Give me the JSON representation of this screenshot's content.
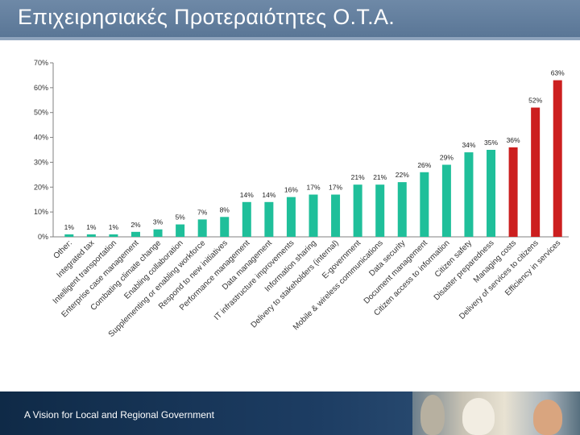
{
  "header": {
    "title": "Επιχειρησιακές Προτεραιότητες Ο.Τ.Α."
  },
  "footer": {
    "caption": "A Vision for Local and Regional Government",
    "photo_icon": "people-at-computer-photo"
  },
  "colors": {
    "header_bg": "#5f7b9b",
    "bar_teal": "#1fbf9a",
    "bar_red": "#cc1f1f",
    "footer_bg": "#142f50"
  },
  "chart_data": {
    "type": "bar",
    "title": "",
    "xlabel": "",
    "ylabel": "",
    "ylim": [
      0,
      70
    ],
    "yticks": [
      "0%",
      "10%",
      "20%",
      "30%",
      "40%",
      "50%",
      "60%",
      "70%"
    ],
    "grid": false,
    "categories": [
      "Other:",
      "Integrated tax",
      "Intelligent transportation",
      "Enterprise case management",
      "Combating climate change",
      "Enabling collaboration",
      "Supplementing or enabling workforce",
      "Respond to new initiatives",
      "Performance management",
      "Data management",
      "IT infrastructure improvements",
      "Information sharing",
      "Delivery to stakeholders (internal)",
      "E-government",
      "Mobile & wireless communications",
      "Data security",
      "Document management",
      "Citizen access to information",
      "Citizen safety",
      "Disaster preparedness",
      "Managing costs",
      "Delivery of services to citizens",
      "Efficiency in services"
    ],
    "values": [
      1,
      1,
      1,
      2,
      3,
      5,
      7,
      8,
      14,
      14,
      16,
      17,
      17,
      21,
      21,
      22,
      26,
      29,
      34,
      35,
      36,
      52,
      63
    ],
    "value_labels": [
      "1%",
      "1%",
      "1%",
      "2%",
      "3%",
      "5%",
      "7%",
      "8%",
      "14%",
      "14%",
      "16%",
      "17%",
      "17%",
      "21%",
      "21%",
      "22%",
      "26%",
      "29%",
      "34%",
      "35%",
      "36%",
      "52%",
      "63%"
    ],
    "x_tick_labels": [
      "Other:",
      "Integrated tax",
      "Intelligent transportation",
      "Enterprise case management",
      "Combating climate change",
      "Enabling collaboration",
      "Supplementing or enabling workforce",
      "Respond to new initiatives",
      "Performance management",
      "Data management",
      "IT infrastructure improvements",
      "Information sharing",
      "Delivery to stakeholders (internal)",
      "E-government",
      "Mobile & wireless communications",
      "Data security",
      "Document management",
      "Citizen access to information",
      "Citizen safety",
      "Disaster preparedness",
      "Managing costs",
      "Delivery of services to citizens",
      "Efficiency in services"
    ],
    "bar_colors": [
      "#1fbf9a",
      "#1fbf9a",
      "#1fbf9a",
      "#1fbf9a",
      "#1fbf9a",
      "#1fbf9a",
      "#1fbf9a",
      "#1fbf9a",
      "#1fbf9a",
      "#1fbf9a",
      "#1fbf9a",
      "#1fbf9a",
      "#1fbf9a",
      "#1fbf9a",
      "#1fbf9a",
      "#1fbf9a",
      "#1fbf9a",
      "#1fbf9a",
      "#1fbf9a",
      "#1fbf9a",
      "#cc1f1f",
      "#cc1f1f",
      "#cc1f1f"
    ]
  }
}
